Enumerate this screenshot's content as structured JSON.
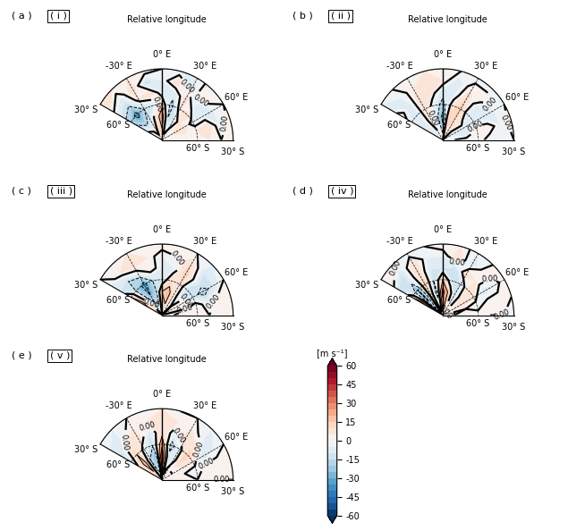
{
  "chart_data": [
    {
      "type": "contour",
      "label": "( a )",
      "subtitle": "( i )",
      "title": "Relative longitude",
      "x": [
        -60,
        -45,
        -30,
        -15,
        0,
        15,
        30,
        45,
        60,
        75,
        90
      ],
      "y": [
        -90,
        -80,
        -70,
        -60,
        -50,
        -40,
        -30
      ],
      "values": [
        [
          5,
          5,
          5,
          5,
          5,
          5,
          5,
          5,
          5,
          5,
          5
        ],
        [
          5,
          0,
          -5,
          10,
          15,
          -5,
          0,
          5,
          5,
          0,
          5
        ],
        [
          -10,
          -20,
          -10,
          5,
          25,
          -15,
          -10,
          5,
          10,
          5,
          0
        ],
        [
          -20,
          -35,
          -15,
          -10,
          10,
          -20,
          5,
          10,
          -5,
          5,
          5
        ],
        [
          -10,
          -15,
          5,
          10,
          -5,
          -10,
          10,
          -10,
          -5,
          10,
          5
        ],
        [
          5,
          -5,
          10,
          -15,
          -5,
          10,
          -5,
          5,
          -5,
          -5,
          0
        ],
        [
          10,
          5,
          5,
          5,
          0,
          -5,
          -5,
          5,
          0,
          5,
          5
        ]
      ],
      "xlim": [
        -60,
        90
      ],
      "ylim": [
        -90,
        -30
      ],
      "xticks": [
        {
          "value": -30,
          "label": "-30° E"
        },
        {
          "value": 0,
          "label": "0° E"
        },
        {
          "value": 30,
          "label": "30° E"
        },
        {
          "value": 60,
          "label": "60° E"
        }
      ],
      "yticks": [
        {
          "value": -60,
          "label": "60° S"
        },
        {
          "value": -30,
          "label": "30° S"
        }
      ],
      "grid": true
    },
    {
      "type": "contour",
      "label": "( b )",
      "subtitle": "( ii )",
      "title": "Relative longitude",
      "x": [
        -60,
        -45,
        -30,
        -15,
        0,
        15,
        30,
        45,
        60,
        75,
        90
      ],
      "y": [
        -90,
        -80,
        -70,
        -60,
        -50,
        -40,
        -30
      ],
      "values": [
        [
          0,
          0,
          0,
          0,
          0,
          0,
          0,
          0,
          0,
          0,
          0
        ],
        [
          -5,
          -10,
          0,
          -5,
          -25,
          10,
          5,
          0,
          -5,
          -5,
          0
        ],
        [
          -10,
          -5,
          5,
          -10,
          -35,
          15,
          10,
          5,
          -5,
          -10,
          5
        ],
        [
          -5,
          -10,
          10,
          -5,
          -20,
          5,
          15,
          -10,
          -5,
          5,
          5
        ],
        [
          5,
          -10,
          10,
          5,
          -10,
          -5,
          10,
          -5,
          -10,
          5,
          -5
        ],
        [
          -5,
          -5,
          5,
          10,
          5,
          -10,
          5,
          5,
          -5,
          -5,
          0
        ],
        [
          -5,
          0,
          5,
          5,
          5,
          0,
          -5,
          -5,
          0,
          5,
          0
        ]
      ],
      "xlim": [
        -60,
        90
      ],
      "ylim": [
        -90,
        -30
      ],
      "xticks": [
        {
          "value": -30,
          "label": "-30° E"
        },
        {
          "value": 0,
          "label": "0° E"
        },
        {
          "value": 30,
          "label": "30° E"
        },
        {
          "value": 60,
          "label": "60° E"
        }
      ],
      "yticks": [
        {
          "value": -60,
          "label": "60° S"
        },
        {
          "value": -30,
          "label": "30° S"
        }
      ],
      "grid": true
    },
    {
      "type": "contour",
      "label": "( c )",
      "subtitle": "( iii )",
      "title": "Relative longitude",
      "x": [
        -60,
        -45,
        -30,
        -15,
        0,
        15,
        30,
        45,
        60,
        75,
        90
      ],
      "y": [
        -90,
        -80,
        -70,
        -60,
        -50,
        -40,
        -30
      ],
      "values": [
        [
          0,
          0,
          0,
          0,
          0,
          0,
          0,
          0,
          0,
          0,
          0
        ],
        [
          10,
          5,
          -10,
          -15,
          10,
          15,
          5,
          0,
          5,
          0,
          0
        ],
        [
          25,
          -10,
          -30,
          -20,
          15,
          20,
          5,
          -5,
          5,
          0,
          5
        ],
        [
          15,
          -20,
          -35,
          -15,
          -10,
          10,
          10,
          -15,
          -10,
          5,
          5
        ],
        [
          -10,
          -15,
          -5,
          5,
          -5,
          -5,
          15,
          -5,
          -20,
          -5,
          0
        ],
        [
          -5,
          5,
          10,
          5,
          -5,
          0,
          10,
          -10,
          -10,
          5,
          5
        ],
        [
          0,
          5,
          5,
          0,
          5,
          5,
          0,
          -5,
          0,
          5,
          0
        ]
      ],
      "xlim": [
        -60,
        90
      ],
      "ylim": [
        -90,
        -30
      ],
      "xticks": [
        {
          "value": -30,
          "label": "-30° E"
        },
        {
          "value": 0,
          "label": "0° E"
        },
        {
          "value": 30,
          "label": "30° E"
        },
        {
          "value": 60,
          "label": "60° E"
        }
      ],
      "yticks": [
        {
          "value": -60,
          "label": "60° S"
        },
        {
          "value": -30,
          "label": "30° S"
        }
      ],
      "grid": true
    },
    {
      "type": "contour",
      "label": "( d )",
      "subtitle": "( iv )",
      "title": "Relative longitude",
      "x": [
        -60,
        -45,
        -30,
        -15,
        0,
        15,
        30,
        45,
        60,
        75,
        90
      ],
      "y": [
        -90,
        -80,
        -70,
        -60,
        -50,
        -40,
        -30
      ],
      "values": [
        [
          5,
          5,
          5,
          5,
          5,
          5,
          5,
          5,
          5,
          5,
          5
        ],
        [
          15,
          -20,
          5,
          -10,
          25,
          10,
          -10,
          5,
          5,
          0,
          0
        ],
        [
          35,
          -35,
          10,
          -20,
          35,
          10,
          -15,
          5,
          10,
          0,
          5
        ],
        [
          10,
          -30,
          15,
          -15,
          15,
          -10,
          -10,
          10,
          5,
          -5,
          5
        ],
        [
          -15,
          -10,
          10,
          -10,
          -10,
          -15,
          10,
          5,
          -10,
          5,
          0
        ],
        [
          5,
          -10,
          10,
          -5,
          -5,
          10,
          -10,
          5,
          -5,
          5,
          0
        ],
        [
          5,
          5,
          -5,
          0,
          5,
          5,
          -5,
          0,
          5,
          0,
          0
        ]
      ],
      "xlim": [
        -60,
        90
      ],
      "ylim": [
        -90,
        -30
      ],
      "xticks": [
        {
          "value": -30,
          "label": "-30° E"
        },
        {
          "value": 0,
          "label": "0° E"
        },
        {
          "value": 30,
          "label": "30° E"
        },
        {
          "value": 60,
          "label": "60° E"
        }
      ],
      "yticks": [
        {
          "value": -60,
          "label": "60° S"
        },
        {
          "value": -30,
          "label": "30° S"
        }
      ],
      "grid": true
    },
    {
      "type": "contour",
      "label": "( e )",
      "subtitle": "( v )",
      "title": "Relative longitude",
      "x": [
        -60,
        -45,
        -30,
        -15,
        0,
        15,
        30,
        45,
        60,
        75,
        90
      ],
      "y": [
        -90,
        -80,
        -70,
        -60,
        -50,
        -40,
        -30
      ],
      "values": [
        [
          5,
          5,
          5,
          5,
          5,
          5,
          5,
          5,
          5,
          5,
          5
        ],
        [
          10,
          15,
          -10,
          -25,
          30,
          -5,
          5,
          0,
          0,
          5,
          0
        ],
        [
          5,
          20,
          -15,
          -25,
          45,
          -10,
          -5,
          10,
          5,
          0,
          5
        ],
        [
          -10,
          15,
          -5,
          -15,
          25,
          -20,
          -5,
          15,
          5,
          -5,
          0
        ],
        [
          -15,
          5,
          10,
          -10,
          10,
          -5,
          10,
          5,
          -10,
          5,
          5
        ],
        [
          -5,
          -5,
          5,
          5,
          10,
          5,
          5,
          -5,
          -5,
          5,
          0
        ],
        [
          0,
          -5,
          0,
          5,
          5,
          0,
          0,
          -5,
          0,
          5,
          0
        ]
      ],
      "xlim": [
        -60,
        90
      ],
      "ylim": [
        -90,
        -30
      ],
      "xticks": [
        {
          "value": -30,
          "label": "-30° E"
        },
        {
          "value": 0,
          "label": "0° E"
        },
        {
          "value": 30,
          "label": "30° E"
        },
        {
          "value": 60,
          "label": "60° E"
        }
      ],
      "yticks": [
        {
          "value": -60,
          "label": "60° S"
        },
        {
          "value": -30,
          "label": "30° S"
        }
      ],
      "grid": true
    }
  ],
  "contour_levels": [
    -30,
    -15,
    0,
    15,
    30
  ],
  "contour_labels": [
    {
      "value": 0,
      "label": "0.00"
    }
  ],
  "colorbar": {
    "label": "[m s⁻¹]",
    "range": [
      -60,
      60
    ],
    "levels": [
      -60,
      -55,
      -50,
      -45,
      -40,
      -35,
      -30,
      -25,
      -20,
      -15,
      -10,
      -5,
      0,
      5,
      10,
      15,
      20,
      25,
      30,
      35,
      40,
      45,
      50,
      55,
      60
    ],
    "ticks": [
      -60,
      -45,
      -30,
      -15,
      0,
      15,
      30,
      45,
      60
    ]
  }
}
